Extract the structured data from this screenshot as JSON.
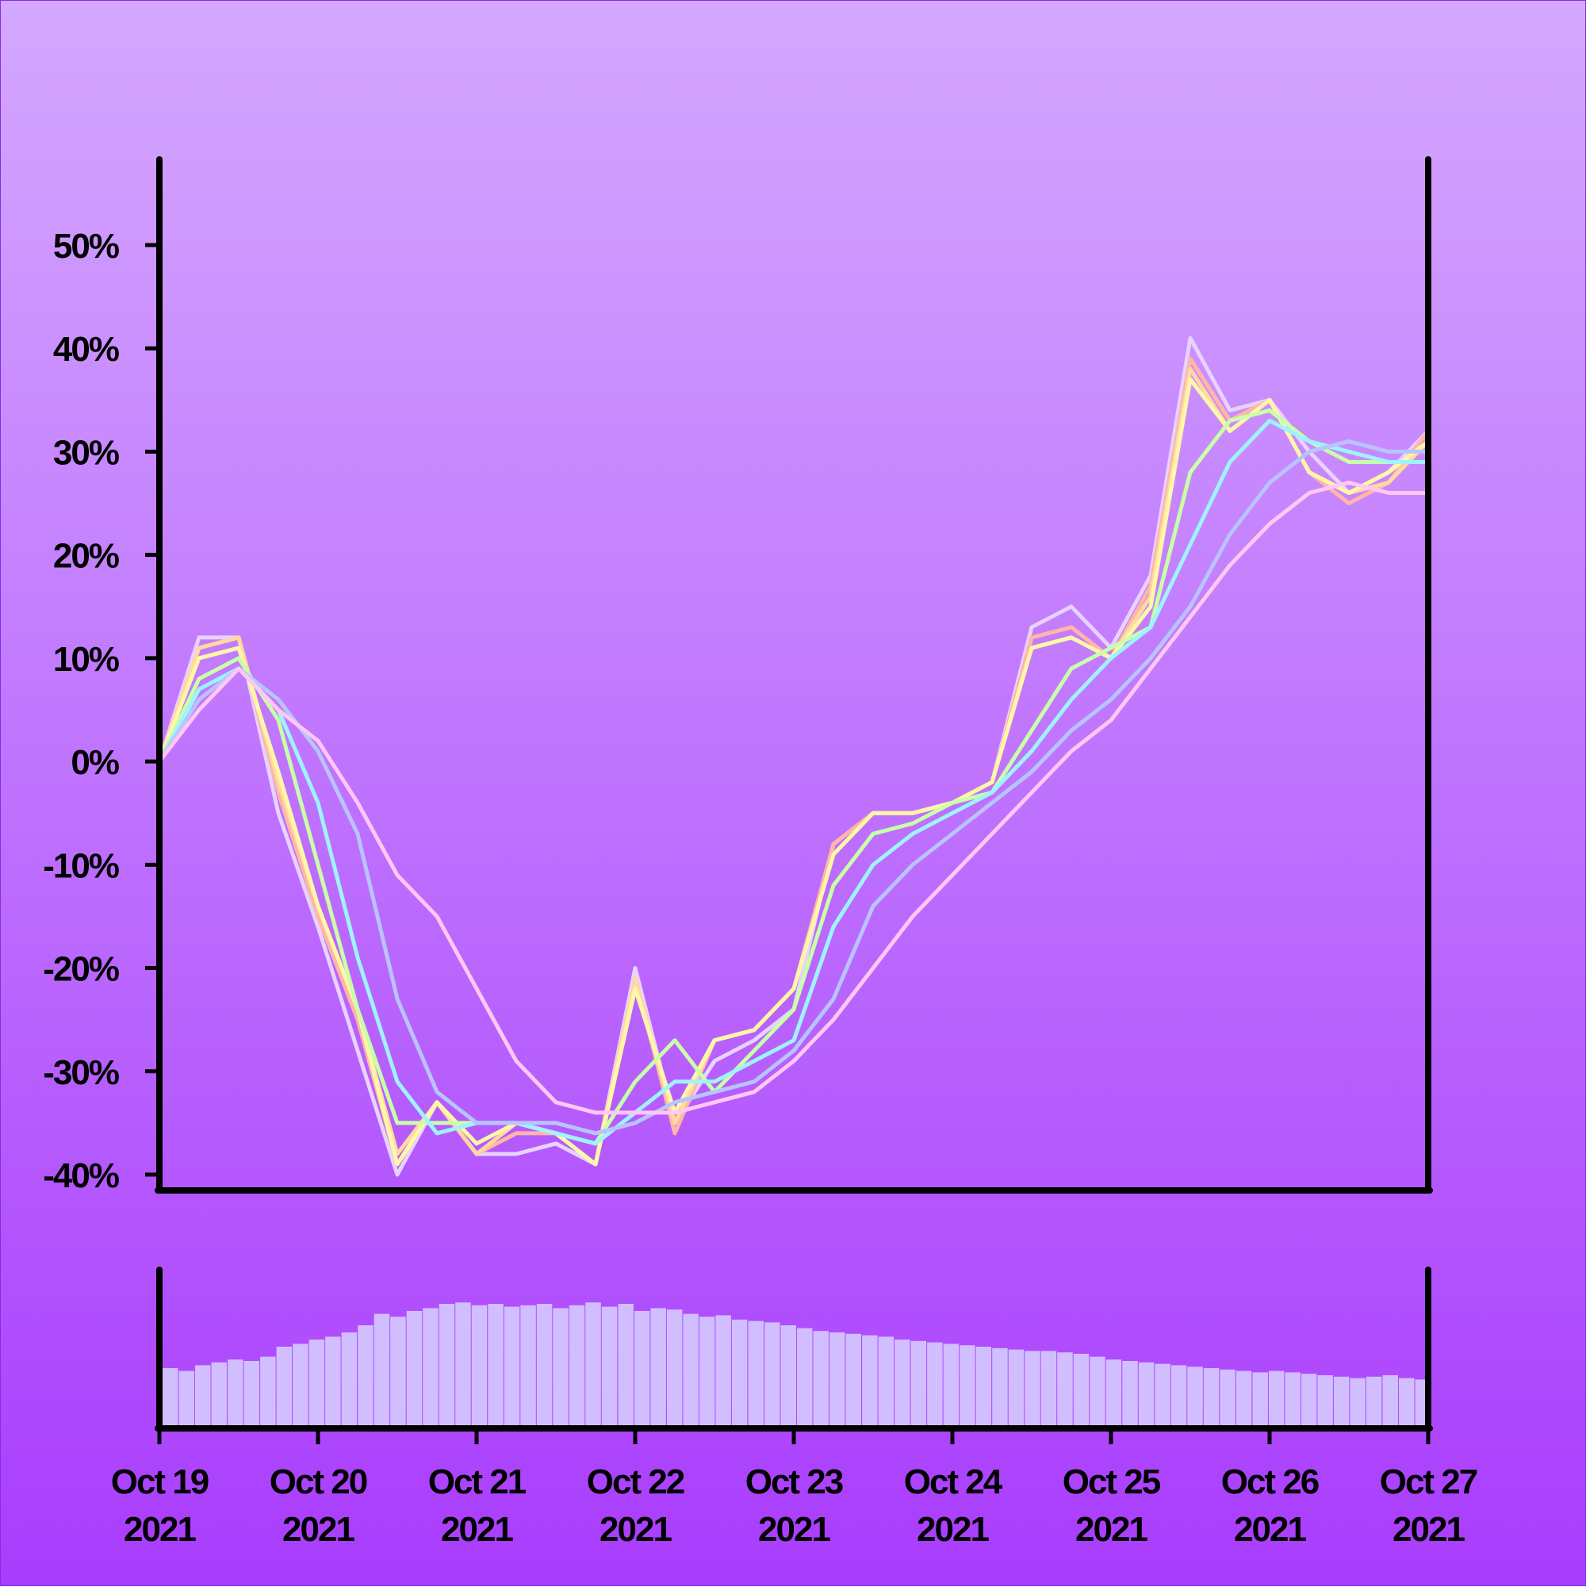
{
  "chart_data": {
    "type": "line",
    "yformat": "percent",
    "ylim": [
      -40,
      58
    ],
    "y_ticks": [
      50,
      40,
      30,
      20,
      10,
      0,
      -10,
      -20,
      -30,
      -40
    ],
    "y_tick_labels": [
      "50%",
      "40%",
      "30%",
      "20%",
      "10%",
      "0%",
      "-10%",
      "-20%",
      "-30%",
      "-40%"
    ],
    "x_ticks": [
      {
        "month_day": "Oct 19",
        "year": "2021",
        "date": "2021-10-19"
      },
      {
        "month_day": "Oct 20",
        "year": "2021",
        "date": "2021-10-20"
      },
      {
        "month_day": "Oct 21",
        "year": "2021",
        "date": "2021-10-21"
      },
      {
        "month_day": "Oct 22",
        "year": "2021",
        "date": "2021-10-22"
      },
      {
        "month_day": "Oct 23",
        "year": "2021",
        "date": "2021-10-23"
      },
      {
        "month_day": "Oct 24",
        "year": "2021",
        "date": "2021-10-24"
      },
      {
        "month_day": "Oct 25",
        "year": "2021",
        "date": "2021-10-25"
      },
      {
        "month_day": "Oct 26",
        "year": "2021",
        "date": "2021-10-26"
      },
      {
        "month_day": "Oct 27",
        "year": "2021",
        "date": "2021-10-27"
      }
    ],
    "xlim": [
      "2021-10-19",
      "2021-10-27"
    ],
    "x": [
      "2021-10-19 00:00",
      "2021-10-19 06:00",
      "2021-10-19 12:00",
      "2021-10-19 18:00",
      "2021-10-20 00:00",
      "2021-10-20 06:00",
      "2021-10-20 12:00",
      "2021-10-20 18:00",
      "2021-10-21 00:00",
      "2021-10-21 06:00",
      "2021-10-21 12:00",
      "2021-10-21 18:00",
      "2021-10-22 00:00",
      "2021-10-22 06:00",
      "2021-10-22 12:00",
      "2021-10-22 18:00",
      "2021-10-23 00:00",
      "2021-10-23 06:00",
      "2021-10-23 12:00",
      "2021-10-23 18:00",
      "2021-10-24 00:00",
      "2021-10-24 06:00",
      "2021-10-24 12:00",
      "2021-10-24 18:00",
      "2021-10-25 00:00",
      "2021-10-25 06:00",
      "2021-10-25 12:00",
      "2021-10-25 18:00",
      "2021-10-26 00:00",
      "2021-10-26 06:00",
      "2021-10-26 12:00",
      "2021-10-26 18:00",
      "2021-10-27 00:00"
    ],
    "series": [
      {
        "color": "#E8D2FF",
        "width": 5,
        "values": [
          0,
          12,
          12,
          -5,
          -16,
          -28,
          -40,
          -33,
          -38,
          -38,
          -37,
          -39,
          -20,
          -35,
          -29,
          -27,
          -24,
          -8,
          -5,
          -5,
          -4,
          -2,
          13,
          15,
          11,
          18,
          41,
          34,
          35,
          30,
          26,
          28,
          32
        ]
      },
      {
        "color": "#FFB6A6",
        "width": 5,
        "values": [
          0,
          11,
          12,
          -3,
          -15,
          -25,
          -39,
          -33,
          -38,
          -36,
          -36,
          -39,
          -21,
          -36,
          -27,
          -26,
          -22,
          -8,
          -5,
          -5,
          -4,
          -2,
          12,
          13,
          10,
          17,
          39,
          33,
          35,
          28,
          25,
          27,
          32
        ]
      },
      {
        "color": "#FFD9A0",
        "width": 5,
        "values": [
          0,
          11,
          12,
          -2,
          -14,
          -24,
          -38,
          -33,
          -38,
          -35,
          -36,
          -39,
          -21,
          -35,
          -27,
          -26,
          -22,
          -9,
          -5,
          -5,
          -4,
          -2,
          11,
          12,
          10,
          16,
          38,
          32,
          35,
          28,
          26,
          27,
          31
        ]
      },
      {
        "color": "#FFF7A8",
        "width": 5,
        "values": [
          0,
          10,
          11,
          -1,
          -14,
          -24,
          -39,
          -33,
          -37,
          -35,
          -36,
          -39,
          -22,
          -34,
          -27,
          -26,
          -22,
          -9,
          -5,
          -5,
          -4,
          -2,
          11,
          12,
          10,
          15,
          37,
          32,
          35,
          28,
          26,
          28,
          31
        ]
      },
      {
        "color": "#C8FFA8",
        "width": 5,
        "values": [
          0,
          8,
          10,
          4,
          -10,
          -24,
          -35,
          -35,
          -35,
          -35,
          -36,
          -37,
          -31,
          -27,
          -32,
          -28,
          -24,
          -12,
          -7,
          -6,
          -4,
          -3,
          3,
          9,
          11,
          13,
          28,
          33,
          34,
          31,
          29,
          29,
          29
        ]
      },
      {
        "color": "#9EF3FF",
        "width": 5,
        "values": [
          0,
          7,
          9,
          5,
          -4,
          -19,
          -31,
          -36,
          -35,
          -35,
          -36,
          -37,
          -34,
          -31,
          -31,
          -29,
          -27,
          -16,
          -10,
          -7,
          -5,
          -3,
          1,
          6,
          10,
          13,
          21,
          29,
          33,
          31,
          30,
          29,
          29
        ]
      },
      {
        "color": "#B8C4FF",
        "width": 5,
        "values": [
          0,
          6,
          9,
          6,
          1,
          -7,
          -23,
          -32,
          -35,
          -35,
          -35,
          -36,
          -35,
          -33,
          -32,
          -31,
          -28,
          -23,
          -14,
          -10,
          -7,
          -4,
          -1,
          3,
          6,
          10,
          15,
          22,
          27,
          30,
          31,
          30,
          30
        ]
      },
      {
        "color": "#FFC7F4",
        "width": 5,
        "values": [
          0,
          5,
          9,
          5,
          2,
          -4,
          -11,
          -15,
          -22,
          -29,
          -33,
          -34,
          -34,
          -34,
          -33,
          -32,
          -29,
          -25,
          -20,
          -15,
          -11,
          -7,
          -3,
          1,
          4,
          9,
          14,
          19,
          23,
          26,
          27,
          26,
          26
        ]
      }
    ],
    "volume": {
      "color": "#D1BEFF",
      "x_start": "2021-10-19",
      "x_end": "2021-10-27",
      "ylim": [
        0,
        100
      ],
      "values": [
        40,
        38,
        42,
        44,
        46,
        45,
        48,
        55,
        57,
        60,
        62,
        65,
        70,
        78,
        76,
        80,
        82,
        85,
        86,
        84,
        85,
        83,
        84,
        85,
        82,
        84,
        86,
        83,
        85,
        80,
        82,
        81,
        78,
        76,
        77,
        74,
        73,
        72,
        70,
        68,
        66,
        65,
        64,
        63,
        62,
        60,
        59,
        58,
        57,
        56,
        55,
        54,
        53,
        52,
        52,
        51,
        50,
        48,
        46,
        45,
        44,
        43,
        42,
        41,
        40,
        39,
        38,
        37,
        38,
        37,
        36,
        35,
        34,
        33,
        34,
        35,
        33,
        32
      ]
    }
  }
}
